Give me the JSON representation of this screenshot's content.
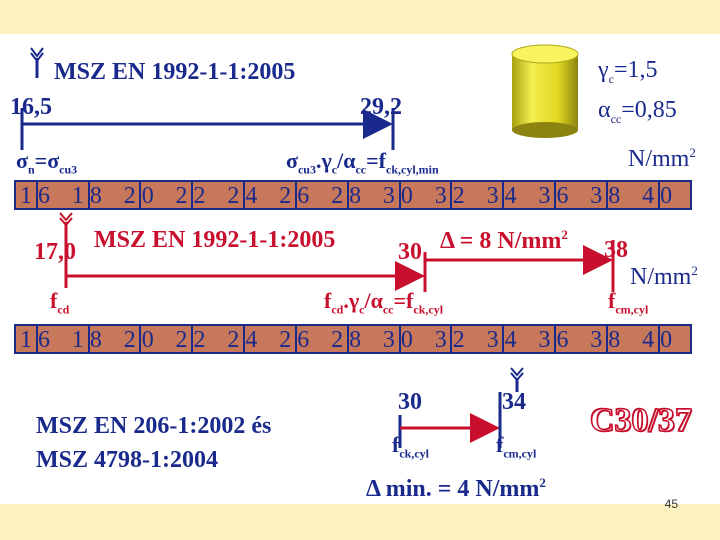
{
  "header": {
    "standard": "MSZ EN 1992-1-1:2005",
    "value_left": "16,5",
    "value_right": "29,2",
    "sigma_left": "σ",
    "sigma_left_sub": "n",
    "sigma_left_eq": "=σ",
    "sigma_left_sub2": "cu3",
    "formula_main": "σ",
    "formula_sub1": "cu3",
    "formula_part2": ".γ",
    "formula_sub2": "c",
    "formula_part3": "/α",
    "formula_sub3": "cc",
    "formula_part4": "=f",
    "formula_sub4": "ck,cyl,min"
  },
  "params": {
    "gamma": "γ",
    "gamma_sub": "c",
    "gamma_val": "=1,5",
    "alpha": "α",
    "alpha_sub": "cc",
    "alpha_val": "=0,85",
    "unit1": "N/mm",
    "unit1_sup": "2"
  },
  "ruler1": {
    "labels": [
      "16",
      "18",
      "20",
      "22",
      "24",
      "26",
      "28",
      "30",
      "32",
      "34",
      "36",
      "38",
      "40"
    ]
  },
  "section2": {
    "value_left": "17,0",
    "standard": "MSZ EN 1992-1-1:2005",
    "value_mid": "30",
    "delta": "Δ = 8 N/mm",
    "delta_sup": "2",
    "value_right": "38",
    "unit": "N/mm",
    "unit_sup": "2",
    "fcd": "f",
    "fcd_sub": "cd",
    "formula_a": "f",
    "formula_a_sub": "cd",
    "formula_b": ".γ",
    "formula_b_sub": "c",
    "formula_c": "/α",
    "formula_c_sub": "cc",
    "formula_d": "=f",
    "formula_d_sub": "ck,cyl",
    "fcm": "f",
    "fcm_sub": "cm,cyl"
  },
  "ruler2": {
    "labels": [
      "16",
      "18",
      "20",
      "22",
      "24",
      "26",
      "28",
      "30",
      "32",
      "34",
      "36",
      "38",
      "40"
    ]
  },
  "bottom": {
    "std_line1": "MSZ EN 206-1:2002 és",
    "std_line2": "MSZ 4798-1:2004",
    "v30": "30",
    "v34": "34",
    "fck": "f",
    "fck_sub": "ck,cyl",
    "fcm": "f",
    "fcm_sub": "cm,cyl",
    "delta_min": "Δ min. = 4 N/mm",
    "delta_min_sup": "2",
    "concrete_class": "C30/37"
  },
  "page_number": "45",
  "colors": {
    "text_blue": "#1a2a8c",
    "text_red": "#c8102e",
    "ruler_fill": "#c8785a",
    "cylinder": "#e8e020",
    "background": "#fffbd6"
  }
}
